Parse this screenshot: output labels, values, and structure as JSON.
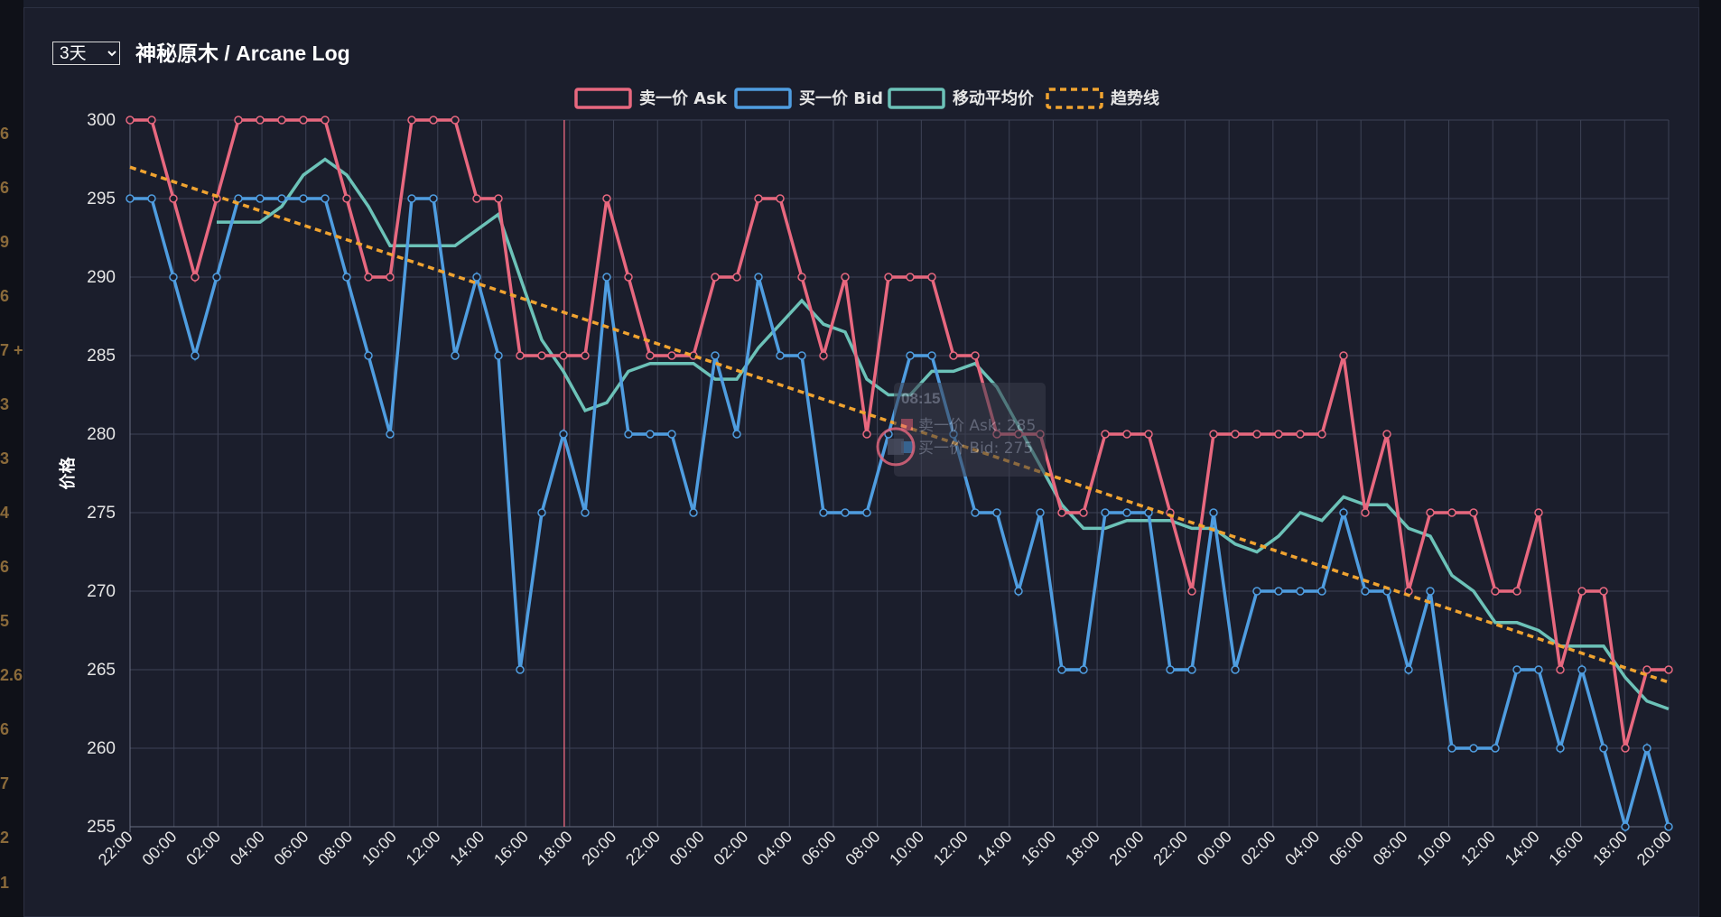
{
  "range_selector": {
    "selected": "3天",
    "options": [
      "3天"
    ]
  },
  "title": "神秘原木 / Arcane Log",
  "background_fragments": [
    "6",
    "6",
    "9",
    "6",
    "7 +",
    "3",
    "3",
    "4",
    "6",
    "5",
    "2.6",
    "6",
    "7",
    "2",
    "1"
  ],
  "chart_data": {
    "type": "line",
    "title": "神秘原木 / Arcane Log",
    "ylabel": "价格",
    "xlabel": "",
    "ylim": [
      255,
      300
    ],
    "yticks": [
      300,
      295,
      290,
      285,
      280,
      275,
      270,
      265,
      260,
      255
    ],
    "grid": true,
    "legend_position": "top-center",
    "x_labels": [
      "22:00",
      "00:00",
      "02:00",
      "04:00",
      "06:00",
      "08:00",
      "10:00",
      "12:00",
      "14:00",
      "16:00",
      "18:00",
      "20:00",
      "22:00",
      "00:00",
      "02:00",
      "04:00",
      "06:00",
      "08:00",
      "10:00",
      "12:00",
      "14:00",
      "16:00",
      "18:00",
      "20:00",
      "22:00",
      "00:00",
      "02:00",
      "04:00",
      "06:00",
      "08:00",
      "10:00",
      "12:00",
      "14:00",
      "16:00",
      "18:00",
      "20:00"
    ],
    "series": [
      {
        "name": "卖一价 Ask",
        "color": "#e8687f",
        "style": "solid",
        "values": [
          300,
          300,
          295,
          290,
          295,
          300,
          300,
          300,
          300,
          300,
          295,
          290,
          290,
          300,
          300,
          300,
          295,
          295,
          285,
          285,
          285,
          285,
          295,
          290,
          285,
          285,
          285,
          290,
          290,
          295,
          295,
          290,
          285,
          290,
          280,
          290,
          290,
          290,
          285,
          285,
          280,
          280,
          280,
          275,
          275,
          280,
          280,
          280,
          275,
          270,
          280,
          280,
          280,
          280,
          280,
          280,
          285,
          275,
          280,
          270,
          275,
          275,
          275,
          270,
          270,
          275,
          265,
          270,
          270,
          260,
          265,
          265
        ]
      },
      {
        "name": "买一价 Bid",
        "color": "#4f9de0",
        "style": "solid",
        "values": [
          295,
          295,
          290,
          285,
          290,
          295,
          295,
          295,
          295,
          295,
          290,
          285,
          280,
          295,
          295,
          285,
          290,
          285,
          265,
          275,
          280,
          275,
          290,
          280,
          280,
          280,
          275,
          285,
          280,
          290,
          285,
          285,
          275,
          275,
          275,
          280,
          285,
          285,
          280,
          275,
          275,
          270,
          275,
          265,
          265,
          275,
          275,
          275,
          265,
          265,
          275,
          265,
          270,
          270,
          270,
          270,
          275,
          270,
          270,
          265,
          270,
          260,
          260,
          260,
          265,
          265,
          260,
          265,
          260,
          255,
          260,
          255
        ]
      },
      {
        "name": "移动平均价",
        "color": "#6cc2b8",
        "style": "solid",
        "start_index": 4,
        "values": [
          293.5,
          293.5,
          293.5,
          294.5,
          296.5,
          297.5,
          296.5,
          294.5,
          292,
          292,
          292,
          292,
          293,
          294,
          290,
          286,
          284,
          281.5,
          282,
          284,
          284.5,
          284.5,
          284.5,
          283.5,
          283.5,
          285.5,
          287,
          288.5,
          287,
          286.5,
          283.5,
          282.5,
          282.5,
          284,
          284,
          284.5,
          283,
          280.5,
          278,
          275.5,
          274,
          274,
          274.5,
          274.5,
          274.5,
          274,
          274,
          273,
          272.5,
          273.5,
          275,
          274.5,
          276,
          275.5,
          275.5,
          274,
          273.5,
          271,
          270,
          268,
          268,
          267.5,
          266.5,
          266.5,
          266.5,
          264.5,
          263,
          262.5
        ]
      },
      {
        "name": "趋势线",
        "color": "#f0a330",
        "style": "dashed",
        "start": 297,
        "end": 264.2
      }
    ],
    "hover_marker_line": {
      "x_label": "18:00"
    },
    "tooltip": {
      "title": "08:15",
      "lines": [
        "卖一价 Ask: 285",
        "买一价 Bid: 275"
      ]
    }
  }
}
